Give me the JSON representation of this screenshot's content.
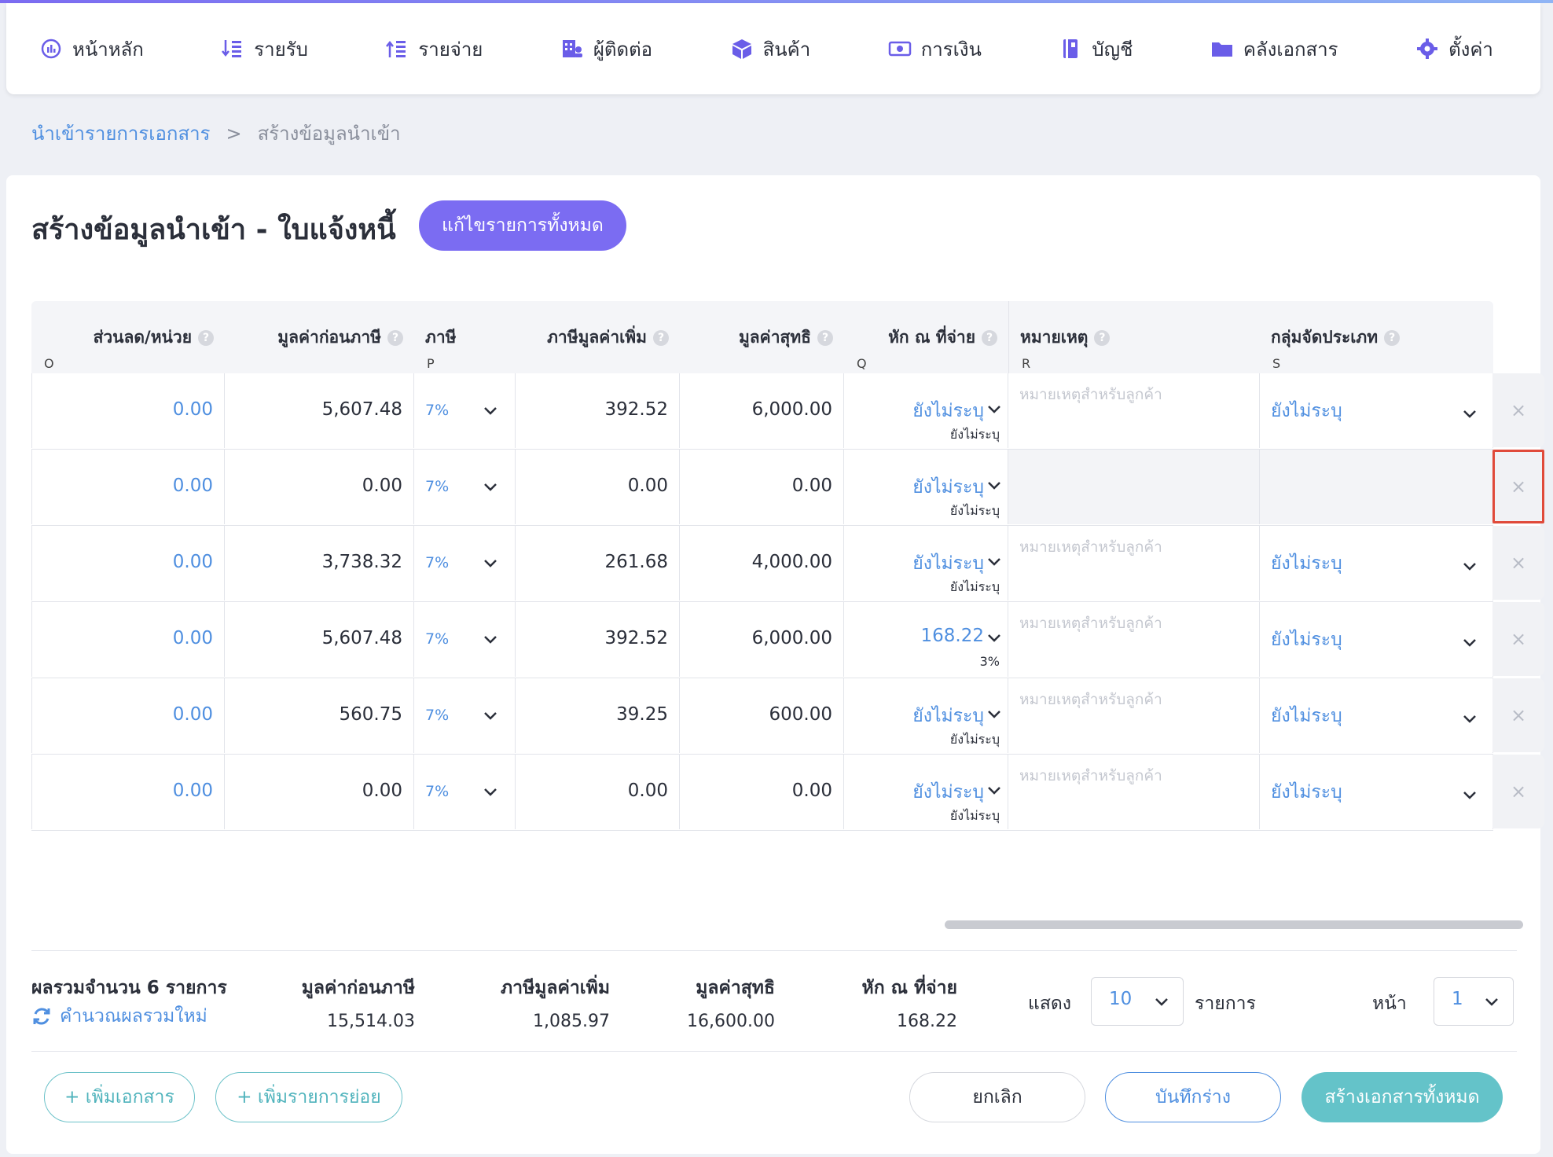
{
  "nav": {
    "items": [
      {
        "label": "หน้าหลัก",
        "icon": "dashboard-icon"
      },
      {
        "label": "รายรับ",
        "icon": "income-icon"
      },
      {
        "label": "รายจ่าย",
        "icon": "expense-icon"
      },
      {
        "label": "ผู้ติดต่อ",
        "icon": "contacts-icon"
      },
      {
        "label": "สินค้า",
        "icon": "product-box-icon"
      },
      {
        "label": "การเงิน",
        "icon": "money-icon"
      },
      {
        "label": "บัญชี",
        "icon": "ledger-book-icon"
      },
      {
        "label": "คลังเอกสาร",
        "icon": "folder-icon"
      },
      {
        "label": "ตั้งค่า",
        "icon": "gear-icon"
      }
    ]
  },
  "breadcrumb": {
    "link": "นำเข้ารายการเอกสาร",
    "separator": ">",
    "current": "สร้างข้อมูลนำเข้า"
  },
  "page": {
    "title": "สร้างข้อมูลนำเข้า - ใบแจ้งหนี้",
    "edit_all_label": "แก้ไขรายการทั้งหมด"
  },
  "table": {
    "headers": {
      "discount": {
        "label": "ส่วนลด/หน่วย",
        "col": "O"
      },
      "pretax": {
        "label": "มูลค่าก่อนภาษี",
        "col": ""
      },
      "vat": {
        "label": "ภาษี",
        "col": "P"
      },
      "vat_amount": {
        "label": "ภาษีมูลค่าเพิ่ม",
        "col": ""
      },
      "net": {
        "label": "มูลค่าสุทธิ",
        "col": ""
      },
      "wht": {
        "label": "หัก ณ ที่จ่าย",
        "col": "Q"
      },
      "remark": {
        "label": "หมายเหตุ",
        "col": "R"
      },
      "group": {
        "label": "กลุ่มจัดประเภท",
        "col": "S"
      }
    },
    "help_glyph": "?",
    "remark_placeholder": "หมายเหตุสำหรับลูกค้า",
    "delete_glyph": "×",
    "rows": [
      {
        "discount": "0.00",
        "pretax": "5,607.48",
        "vat": "7%",
        "vat_amount": "392.52",
        "net": "6,000.00",
        "wht": "ยังไม่ระบุ",
        "wht_sub": "ยังไม่ระบุ",
        "remark": "",
        "group": "ยังไม่ระบุ",
        "selected": false
      },
      {
        "discount": "0.00",
        "pretax": "0.00",
        "vat": "7%",
        "vat_amount": "0.00",
        "net": "0.00",
        "wht": "ยังไม่ระบุ",
        "wht_sub": "ยังไม่ระบุ",
        "remark": "",
        "group": "",
        "selected": true
      },
      {
        "discount": "0.00",
        "pretax": "3,738.32",
        "vat": "7%",
        "vat_amount": "261.68",
        "net": "4,000.00",
        "wht": "ยังไม่ระบุ",
        "wht_sub": "ยังไม่ระบุ",
        "remark": "",
        "group": "ยังไม่ระบุ",
        "selected": false
      },
      {
        "discount": "0.00",
        "pretax": "5,607.48",
        "vat": "7%",
        "vat_amount": "392.52",
        "net": "6,000.00",
        "wht": "168.22",
        "wht_sub": "3%",
        "remark": "",
        "group": "ยังไม่ระบุ",
        "selected": false
      },
      {
        "discount": "0.00",
        "pretax": "560.75",
        "vat": "7%",
        "vat_amount": "39.25",
        "net": "600.00",
        "wht": "ยังไม่ระบุ",
        "wht_sub": "ยังไม่ระบุ",
        "remark": "",
        "group": "ยังไม่ระบุ",
        "selected": false
      },
      {
        "discount": "0.00",
        "pretax": "0.00",
        "vat": "7%",
        "vat_amount": "0.00",
        "net": "0.00",
        "wht": "ยังไม่ระบุ",
        "wht_sub": "ยังไม่ระบุ",
        "remark": "",
        "group": "ยังไม่ระบุ",
        "selected": false
      }
    ]
  },
  "summary": {
    "count_label": "ผลรวมจำนวน 6 รายการ",
    "recalc_label": "คำนวณผลรวมใหม่",
    "pretax_label": "มูลค่าก่อนภาษี",
    "pretax_value": "15,514.03",
    "vat_label": "ภาษีมูลค่าเพิ่ม",
    "vat_value": "1,085.97",
    "net_label": "มูลค่าสุทธิ",
    "net_value": "16,600.00",
    "wht_label": "หัก ณ ที่จ่าย",
    "wht_value": "168.22"
  },
  "pagination": {
    "show_label": "แสดง",
    "page_size": "10",
    "items_label": "รายการ",
    "page_label": "หน้า",
    "page": "1"
  },
  "actions": {
    "add_document": "+ เพิ่มเอกสาร",
    "add_sub_item": "+ เพิ่มรายการย่อย",
    "cancel": "ยกเลิก",
    "save_draft": "บันทึกร่าง",
    "create_all": "สร้างเอกสารทั้งหมด"
  },
  "colors": {
    "accent": "#7b6cf2",
    "link": "#4f8fe0",
    "teal": "#64c3c9",
    "highlight": "#e04a3a"
  }
}
